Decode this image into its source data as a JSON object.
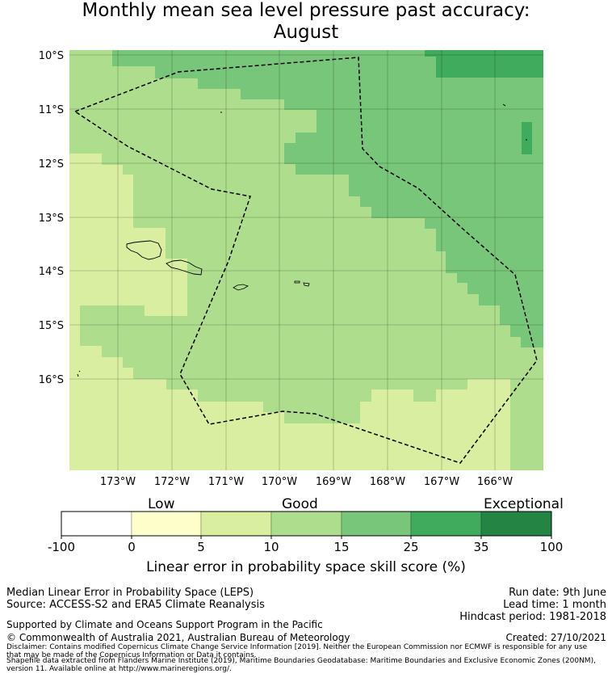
{
  "title": {
    "line1": "Monthly mean sea level pressure past accuracy:",
    "line2": "August"
  },
  "map": {
    "lat_labels": [
      "10°S",
      "11°S",
      "12°S",
      "13°S",
      "14°S",
      "15°S",
      "16°S"
    ],
    "lon_labels": [
      "173°W",
      "172°W",
      "171°W",
      "170°W",
      "169°W",
      "168°W",
      "167°W",
      "166°W"
    ],
    "colors": {
      "c0_5": "#fefecb",
      "c5_10": "#d9eea0",
      "c10_15": "#aedd8d",
      "c15_25": "#78c679",
      "c25_35": "#41ab5d",
      "c35_100": "#238443"
    }
  },
  "colorbar": {
    "category_labels": [
      "Low",
      "Good",
      "Exceptional"
    ],
    "tick_labels": [
      "-100",
      "0",
      "5",
      "10",
      "15",
      "25",
      "35",
      "100"
    ],
    "bin_colors": [
      "#ffffff",
      "#fefecb",
      "#d9eea0",
      "#aedd8d",
      "#78c679",
      "#41ab5d",
      "#238443"
    ],
    "title": "Linear error in probability space skill score (%)"
  },
  "footer": {
    "left1": "Median Linear Error in Probability Space (LEPS)",
    "left2": "Source: ACCESS-S2 and ERA5 Climate Reanalysis",
    "support": "Supported by Climate and Oceans Support Program in the Pacific",
    "copyright": "© Commonwealth of Australia 2021, Australian Bureau of Meteorology",
    "run_date": "Run date: 9th June",
    "lead_time": "Lead time: 1 month",
    "hindcast": "Hindcast period: 1981-2018",
    "created": "Created: 27/10/2021",
    "disclaimer1": "Disclaimer: Contains modified Copernicus Climate Change Service Information [2019]. Neither the European Commission nor ECMWF is responsible for any use",
    "disclaimer2": "that may be made of the Copernicus Information or Data it contains.",
    "shapefile1": "Shapefile data extracted from Flanders Marine Institute (2019), Maritime Boundaries Geodatabase: Maritime Boundaries and Exclusive Economic Zones (200NM),",
    "shapefile2": "version 11. Available online at http://www.marineregions.org/."
  }
}
